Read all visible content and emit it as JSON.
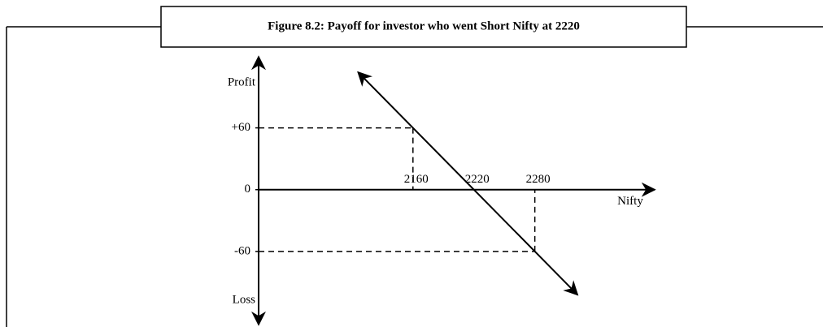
{
  "chart_data": {
    "type": "line",
    "title": "Figure 8.2: Payoff for investor who went Short Nifty at 2220",
    "xlabel": "Nifty",
    "ylabel_top": "Profit",
    "ylabel_bottom": "Loss",
    "x": [
      2106,
      2322
    ],
    "values": [
      114,
      -102
    ],
    "color": "#000000",
    "xlim": [
      2008,
      2398
    ],
    "ylim": [
      -131,
      129
    ],
    "xticks": [
      2160,
      2220,
      2280
    ],
    "yticks": [
      {
        "value": 60,
        "label": "+60"
      },
      0,
      -60
    ]
  }
}
